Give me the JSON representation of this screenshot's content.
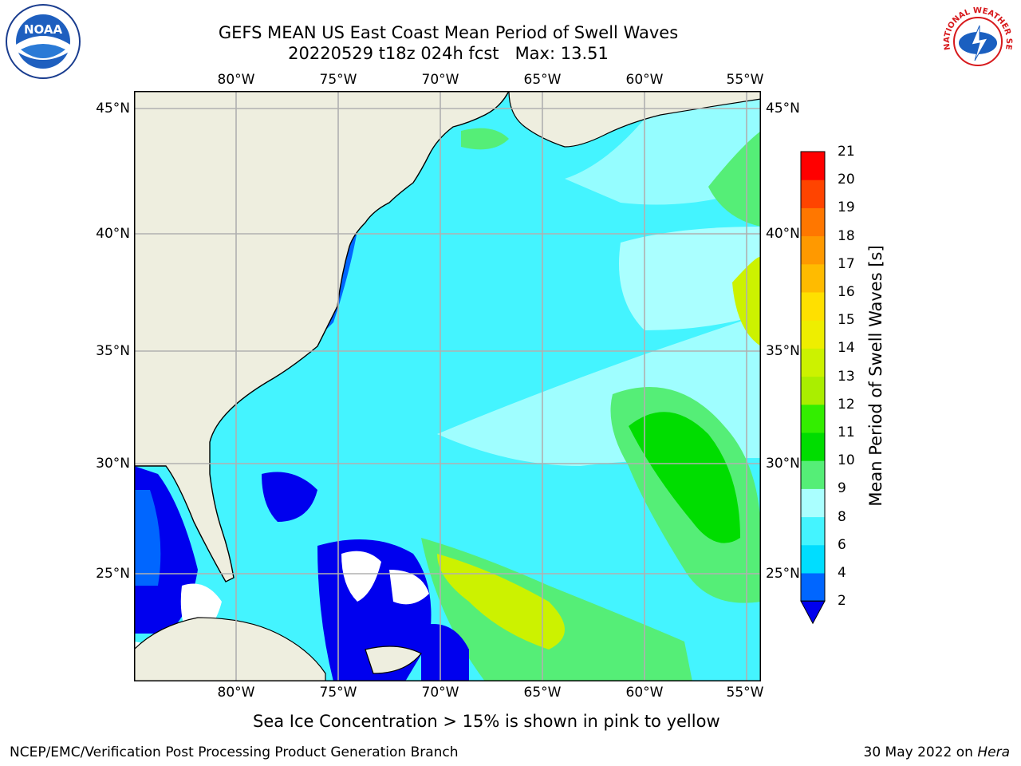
{
  "header": {
    "title_line1": "GEFS MEAN US East Coast Mean Period of Swell Waves",
    "title_line2": "20220529 t18z 024h fcst   Max: 13.51",
    "left_logo_text": "NOAA",
    "right_logo_text": "NATIONAL WEATHER SERVICE"
  },
  "map": {
    "lon_ticks": [
      "80°W",
      "75°W",
      "70°W",
      "65°W",
      "60°W",
      "55°W"
    ],
    "lat_ticks": [
      "45°N",
      "40°N",
      "35°N",
      "30°N",
      "25°N"
    ],
    "land_color": "#eeeedf",
    "grid_color": "#b0b0b0",
    "gridlines": "on"
  },
  "colorbar": {
    "title": "Mean Period of Swell Waves [s]",
    "labels": [
      "21",
      "20",
      "19",
      "18",
      "17",
      "16",
      "15",
      "14",
      "13",
      "12",
      "11",
      "10",
      "9",
      "8",
      "6",
      "4",
      "2"
    ],
    "levels": [
      2,
      4,
      6,
      8,
      9,
      10,
      11,
      12,
      13,
      14,
      15,
      16,
      17,
      18,
      19,
      20,
      21
    ],
    "colors": [
      "#0066ff",
      "#00ddff",
      "#44f4ff",
      "#aaffff",
      "#55ee77",
      "#00dd00",
      "#33ee00",
      "#aaee00",
      "#ccf200",
      "#eeee00",
      "#ffe000",
      "#ffbb00",
      "#ff9900",
      "#ff7700",
      "#ff4400",
      "#ff0000"
    ],
    "under_color": "#0000ee"
  },
  "notes": {
    "sea_ice": "Sea Ice Concentration > 15% is shown in pink to yellow"
  },
  "footer": {
    "left": "NCEP/EMC/Verification Post Processing Product Generation Branch",
    "right_date": "30 May 2022 on ",
    "right_machine": "Hera"
  },
  "chart_data": {
    "type": "heatmap",
    "title": "GEFS MEAN US East Coast Mean Period of Swell Waves",
    "subtitle": "20220529 t18z 024h fcst   Max: 13.51",
    "variable": "Mean Period of Swell Waves [s]",
    "max_value": 13.51,
    "lon_range": [
      -85,
      -54.5
    ],
    "lat_range": [
      20.5,
      46
    ],
    "color_levels": [
      2,
      4,
      6,
      8,
      9,
      10,
      11,
      12,
      13,
      14,
      15,
      16,
      17,
      18,
      19,
      20,
      21
    ]
  }
}
